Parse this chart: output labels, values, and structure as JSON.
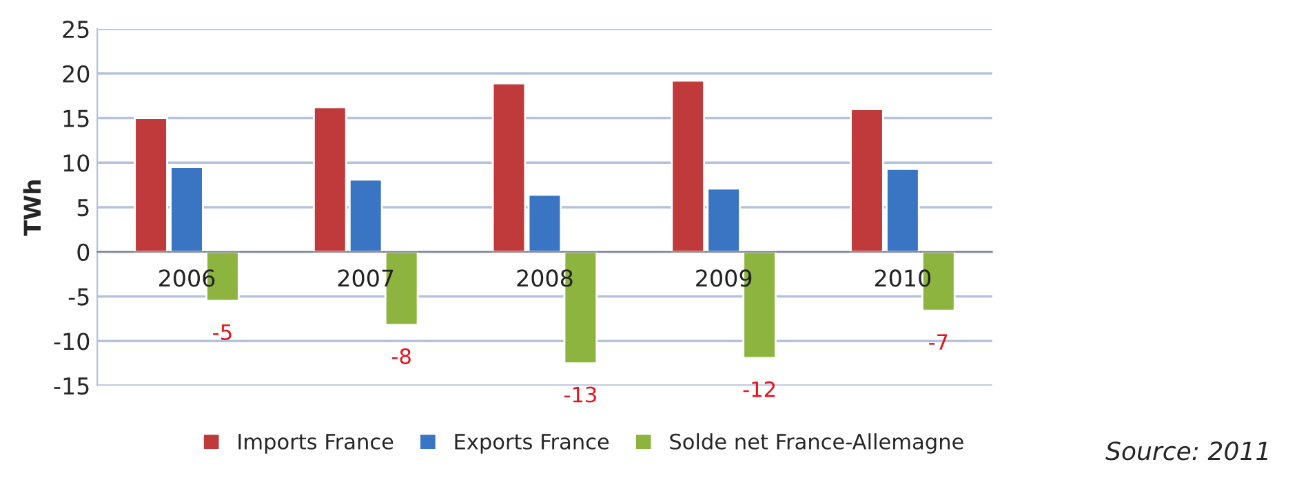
{
  "chart_data": {
    "type": "bar",
    "ylabel": "TWh",
    "categories": [
      "2006",
      "2007",
      "2008",
      "2009",
      "2010"
    ],
    "series": [
      {
        "name": "Imports France",
        "color": "#c0393b",
        "values": [
          15,
          16.2,
          18.9,
          19.2,
          16.0
        ]
      },
      {
        "name": "Exports France",
        "color": "#3a75c4",
        "values": [
          9.5,
          8.1,
          6.4,
          7.1,
          9.3
        ]
      },
      {
        "name": "Solde net France-Allemagne",
        "color": "#8db43e",
        "values": [
          -5.5,
          -8.2,
          -12.5,
          -11.9,
          -6.6
        ],
        "value_labels": [
          "-5",
          "-8",
          "-13",
          "-12",
          "-7"
        ]
      }
    ],
    "ylim": [
      -15,
      25
    ],
    "yticks": [
      -15,
      -10,
      -5,
      0,
      5,
      10,
      15,
      20,
      25
    ],
    "grid": "y",
    "legend": "bottom",
    "annotations": [
      "Source: 2011"
    ]
  }
}
